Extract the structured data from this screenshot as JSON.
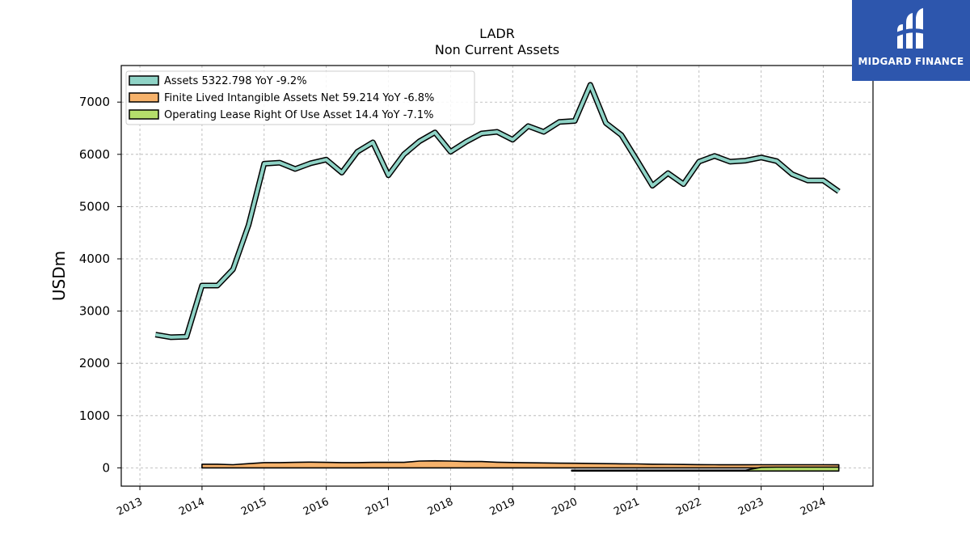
{
  "logo": {
    "name": "MIDGARD FINANCE",
    "background": "#2d56ad"
  },
  "chart_data": {
    "type": "line",
    "title": "LADR",
    "subtitle": "Non Current  Assets",
    "ylabel": "USDm",
    "xlim": [
      2012.7,
      2024.8
    ],
    "ylim": [
      -350,
      7700
    ],
    "yticks": [
      0,
      1000,
      2000,
      3000,
      4000,
      5000,
      6000,
      7000
    ],
    "xticks": [
      "2013",
      "2014",
      "2015",
      "2016",
      "2017",
      "2018",
      "2019",
      "2020",
      "2021",
      "2022",
      "2023",
      "2024"
    ],
    "grid": true,
    "legend_position": "top-left",
    "series": [
      {
        "name": "Assets",
        "legend": "Assets  5322.798 YoY -9.2%",
        "color": "#8fd3c6",
        "x": [
          2013.25,
          2013.5,
          2013.75,
          2014.0,
          2014.25,
          2014.5,
          2014.75,
          2015.0,
          2015.25,
          2015.5,
          2015.75,
          2016.0,
          2016.25,
          2016.5,
          2016.75,
          2017.0,
          2017.25,
          2017.5,
          2017.75,
          2018.0,
          2018.25,
          2018.5,
          2018.75,
          2019.0,
          2019.25,
          2019.5,
          2019.75,
          2020.0,
          2020.25,
          2020.5,
          2020.75,
          2021.0,
          2021.25,
          2021.5,
          2021.75,
          2022.0,
          2022.25,
          2022.5,
          2022.75,
          2023.0,
          2023.25,
          2023.5,
          2023.75,
          2024.0,
          2024.25
        ],
        "y": [
          2550,
          2500,
          2510,
          3490,
          3490,
          3800,
          4650,
          5820,
          5840,
          5720,
          5830,
          5900,
          5650,
          6050,
          6230,
          5600,
          6000,
          6250,
          6420,
          6050,
          6240,
          6400,
          6430,
          6280,
          6540,
          6430,
          6620,
          6640,
          7330,
          6600,
          6370,
          5890,
          5400,
          5640,
          5430,
          5860,
          5970,
          5860,
          5880,
          5940,
          5870,
          5620,
          5500,
          5500,
          5290
        ]
      },
      {
        "name": "Finite Lived Intangible Assets Net",
        "legend": "Finite Lived Intangible Assets Net  59.214 YoY -6.8%",
        "color": "#f6b26b",
        "x": [
          2014.0,
          2014.25,
          2014.5,
          2014.75,
          2015.0,
          2015.25,
          2015.5,
          2015.75,
          2016.0,
          2016.25,
          2016.5,
          2016.75,
          2017.0,
          2017.25,
          2017.5,
          2017.75,
          2018.0,
          2018.25,
          2018.5,
          2018.75,
          2019.0,
          2019.25,
          2019.5,
          2019.75,
          2020.0,
          2020.25,
          2020.5,
          2020.75,
          2021.0,
          2021.25,
          2021.5,
          2021.75,
          2022.0,
          2022.25,
          2022.5,
          2022.75,
          2023.0,
          2023.25,
          2023.5,
          2023.75,
          2024.0,
          2024.25
        ],
        "y": [
          70,
          70,
          60,
          80,
          100,
          100,
          105,
          110,
          105,
          100,
          100,
          105,
          105,
          105,
          130,
          135,
          130,
          120,
          120,
          108,
          102,
          98,
          95,
          90,
          88,
          85,
          80,
          78,
          75,
          70,
          68,
          65,
          62,
          60,
          58,
          58,
          60,
          60,
          60,
          60,
          60,
          59
        ],
        "baseline": 0
      },
      {
        "name": "Operating Lease Right Of Use Asset",
        "legend": "Operating Lease Right Of Use Asset  14.4 YoY -7.1%",
        "color": "#b5de6b",
        "x": [
          2019.95,
          2020.25,
          2020.5,
          2020.75,
          2021.0,
          2021.25,
          2021.5,
          2021.75,
          2022.0,
          2022.25,
          2022.5,
          2022.75,
          2023.0,
          2023.25,
          2023.5,
          2023.75,
          2024.0,
          2024.25
        ],
        "y": [
          -45,
          -45,
          -45,
          -45,
          -45,
          -45,
          -45,
          -45,
          -45,
          -45,
          -45,
          -45,
          10,
          14,
          14,
          14,
          14,
          14
        ],
        "baseline": -60
      }
    ]
  }
}
